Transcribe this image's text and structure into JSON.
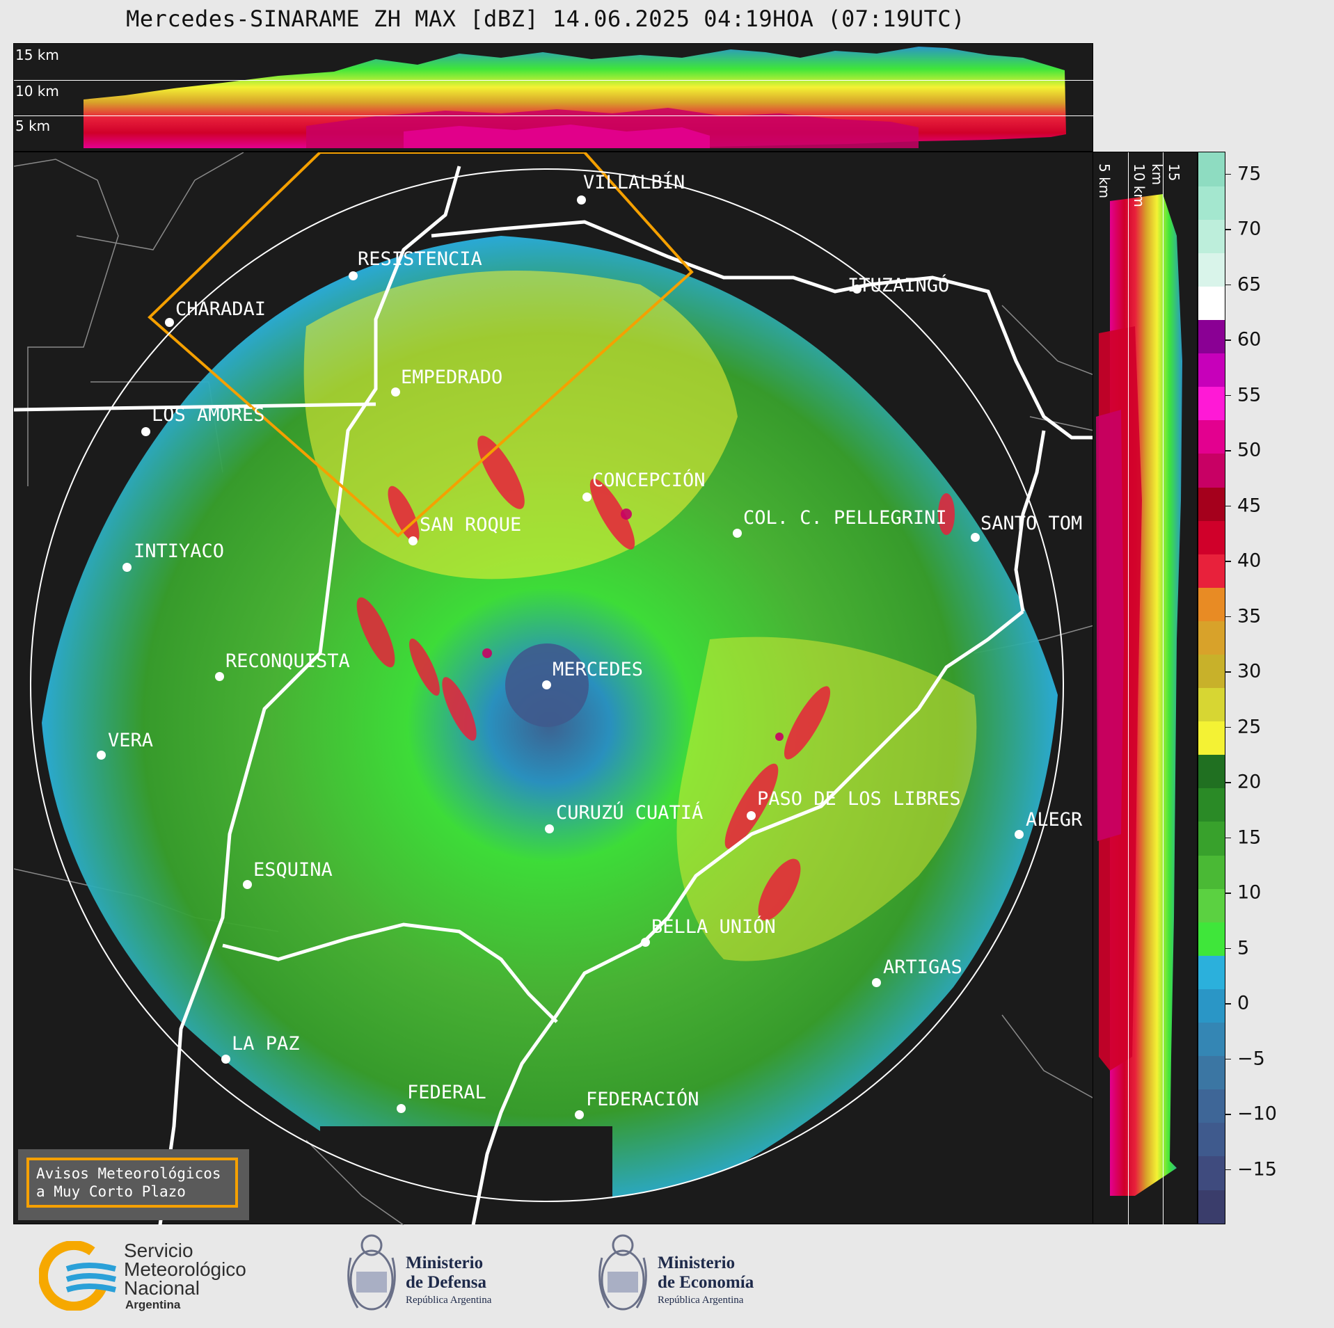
{
  "title": "Mercedes-SINARAME ZH MAX [dBZ] 14.06.2025 04:19HOA (07:19UTC)",
  "top_altitudes": [
    "15 km",
    "10 km",
    "5 km"
  ],
  "side_altitudes": [
    "5 km",
    "10 km",
    "15 km"
  ],
  "colorbar": {
    "ticks": [
      "75",
      "70",
      "65",
      "60",
      "55",
      "50",
      "45",
      "40",
      "35",
      "30",
      "25",
      "20",
      "15",
      "10",
      "5",
      "0",
      "−5",
      "−10",
      "−15"
    ],
    "colors": [
      "#3a3d6b",
      "#3f4b7e",
      "#3f5a8d",
      "#3e6697",
      "#3b76a3",
      "#3486b4",
      "#2a96c6",
      "#2bb0dc",
      "#3fe63a",
      "#5bd141",
      "#4ab935",
      "#38a12c",
      "#2a8a26",
      "#207021",
      "#f4f234",
      "#d7d633",
      "#c8b12a",
      "#d8a22a",
      "#e88b24",
      "#e8213b",
      "#d0002a",
      "#a5001c",
      "#c80064",
      "#e3008f",
      "#ff19d6",
      "#c700ba",
      "#8a0094",
      "#ffffff",
      "#d9f4ea",
      "#bdeedb",
      "#a4e7cf",
      "#8edcc1"
    ]
  },
  "cities": [
    {
      "name": "VILLALBÍN"
    },
    {
      "name": "RESISTENCIA"
    },
    {
      "name": "ITUZAINGÓ"
    },
    {
      "name": "CHARADAI"
    },
    {
      "name": "EMPEDRADO"
    },
    {
      "name": "LOS AMORES"
    },
    {
      "name": "CONCEPCIÓN"
    },
    {
      "name": "SAN ROQUE"
    },
    {
      "name": "COL. C. PELLEGRINI"
    },
    {
      "name": "SANTO TOM"
    },
    {
      "name": "INTIYACO"
    },
    {
      "name": "RECONQUISTA"
    },
    {
      "name": "MERCEDES"
    },
    {
      "name": "VERA"
    },
    {
      "name": "CURUZÚ CUATIÁ"
    },
    {
      "name": "PASO DE LOS LIBRES"
    },
    {
      "name": "ALEGR"
    },
    {
      "name": "ESQUINA"
    },
    {
      "name": "BELLA UNIÓN"
    },
    {
      "name": "ARTIGAS"
    },
    {
      "name": "LA PAZ"
    },
    {
      "name": "FEDERAL"
    },
    {
      "name": "FEDERACIÓN"
    }
  ],
  "notice": {
    "line1": "Avisos Meteorológicos",
    "line2": "a Muy Corto Plazo"
  },
  "logos": {
    "smn": {
      "line1": "Servicio",
      "line2": "Meteorológico",
      "line3": "Nacional",
      "line4": "Argentina"
    },
    "defensa": {
      "line1": "Ministerio",
      "line2": "de Defensa",
      "line3": "República Argentina"
    },
    "economia": {
      "line1": "Ministerio",
      "line2": "de Economía",
      "line3": "República Argentina"
    }
  }
}
